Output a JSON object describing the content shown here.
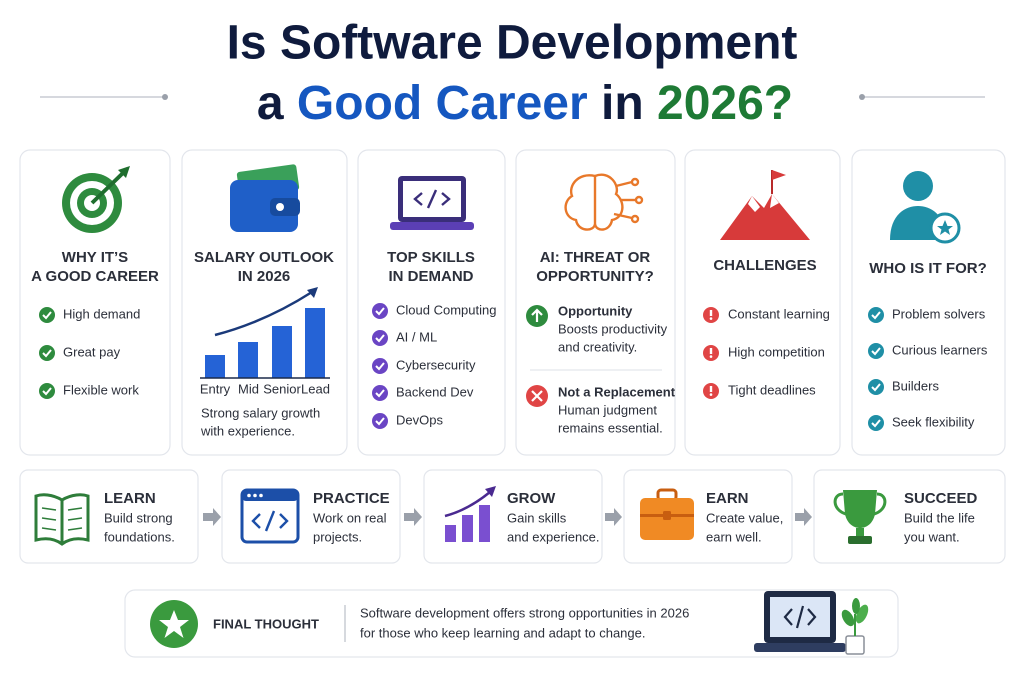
{
  "header": {
    "title_line1": "Is Software Development",
    "title_line2": [
      "a",
      "Good Career",
      "in",
      "2026?"
    ]
  },
  "cards": [
    {
      "title": [
        "WHY IT’S",
        "A GOOD CAREER"
      ],
      "items": [
        "High demand",
        "Great pay",
        "Flexible work"
      ]
    },
    {
      "title": [
        "SALARY OUTLOOK",
        "IN 2026"
      ],
      "levels": [
        "Entry",
        "Mid",
        "Senior",
        "Lead"
      ],
      "caption": [
        "Strong salary growth",
        "with experience."
      ]
    },
    {
      "title": [
        "TOP SKILLS",
        "IN DEMAND"
      ],
      "items": [
        "Cloud Computing",
        "AI / ML",
        "Cybersecurity",
        "Backend Dev",
        "DevOps"
      ]
    },
    {
      "title": [
        "AI: THREAT OR",
        "OPPORTUNITY?"
      ],
      "points": [
        {
          "heading": "Opportunity",
          "text": [
            "Boosts productivity",
            "and creativity."
          ]
        },
        {
          "heading": "Not a Replacement",
          "text": [
            "Human judgment",
            "remains essential."
          ]
        }
      ]
    },
    {
      "title": [
        "CHALLENGES"
      ],
      "items": [
        "Constant learning",
        "High competition",
        "Tight deadlines"
      ]
    },
    {
      "title": [
        "WHO IS IT FOR?"
      ],
      "items": [
        "Problem solvers",
        "Curious learners",
        "Builders",
        "Seek flexibility"
      ]
    }
  ],
  "steps": [
    {
      "label": "LEARN",
      "text": [
        "Build strong",
        "foundations."
      ]
    },
    {
      "label": "PRACTICE",
      "text": [
        "Work on real",
        "projects."
      ]
    },
    {
      "label": "GROW",
      "text": [
        "Gain skills",
        "and experience."
      ]
    },
    {
      "label": "EARN",
      "text": [
        "Create value,",
        "earn well."
      ]
    },
    {
      "label": "SUCCEED",
      "text": [
        "Build the life",
        "you want."
      ]
    }
  ],
  "final": {
    "label": "FINAL THOUGHT",
    "text": [
      "Software development offers strong opportunities in 2026",
      "for those who keep learning and adapt to change."
    ]
  }
}
